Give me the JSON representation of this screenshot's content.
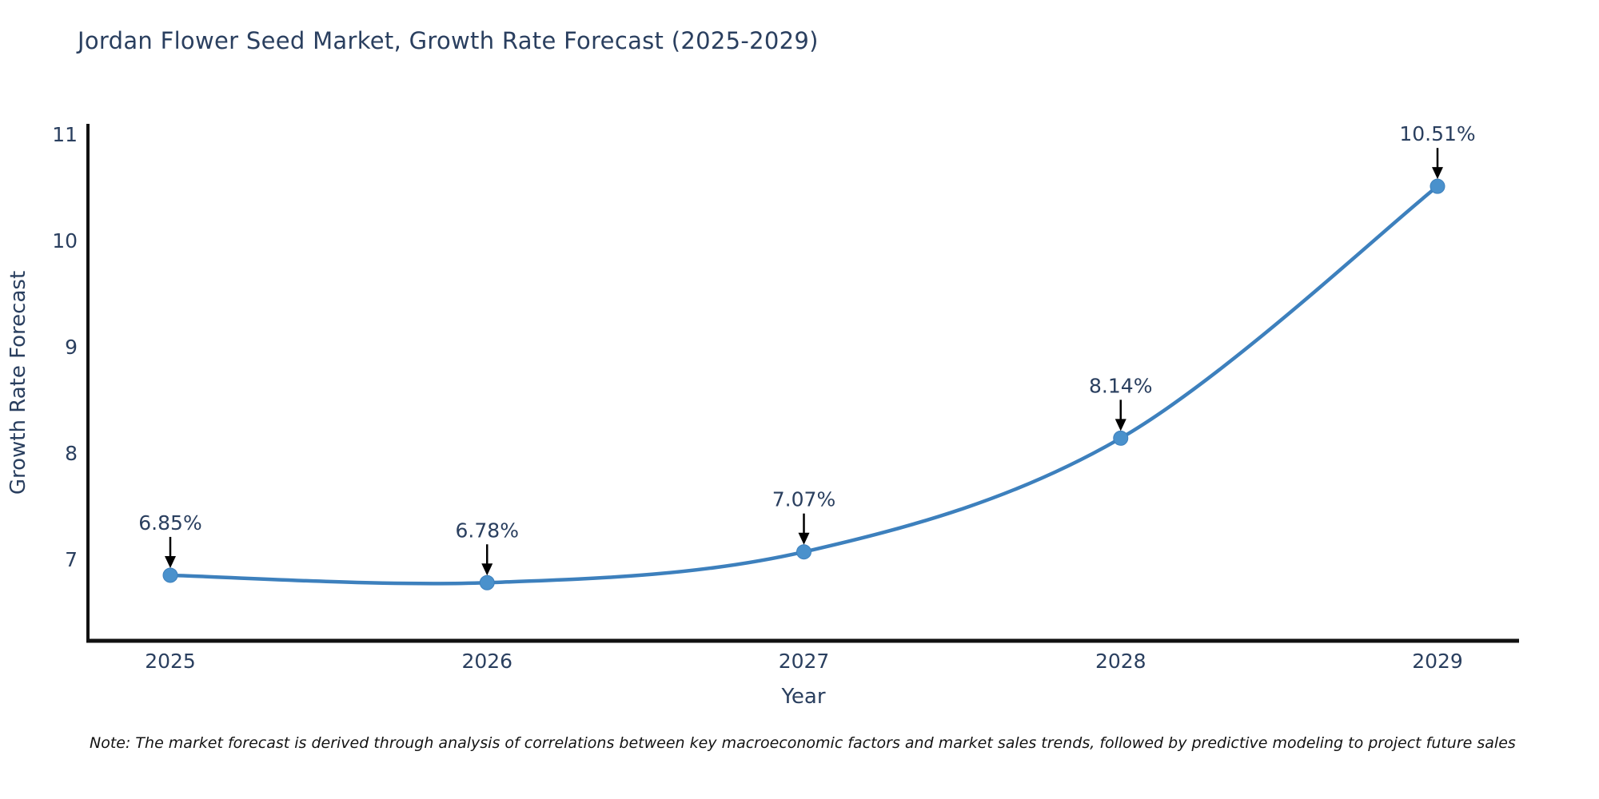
{
  "title": "Jordan Flower Seed Market, Growth Rate Forecast (2025-2029)",
  "note": "Note: The market forecast is derived through analysis of correlations between key macroeconomic factors and market sales trends, followed by predictive modeling to project future sales",
  "chart_data": {
    "type": "line",
    "title": "Jordan Flower Seed Market, Growth Rate Forecast (2025-2029)",
    "xlabel": "Year",
    "ylabel": "Growth Rate Forecast",
    "x": [
      2025,
      2026,
      2027,
      2028,
      2029
    ],
    "values": [
      6.85,
      6.78,
      7.07,
      8.14,
      10.51
    ],
    "point_labels": [
      "6.85%",
      "6.78%",
      "7.07%",
      "8.14%",
      "10.51%"
    ],
    "yticks": [
      7,
      8,
      9,
      10,
      11
    ],
    "ylim": [
      6.23,
      11.1
    ],
    "line_shape": "spline",
    "grid": false,
    "legend": "none",
    "colors": {
      "line": "#3d80bd",
      "marker": "#4a91cc",
      "text": "#2a3f5f",
      "axis": "#111111",
      "annotation": "#000000"
    }
  }
}
